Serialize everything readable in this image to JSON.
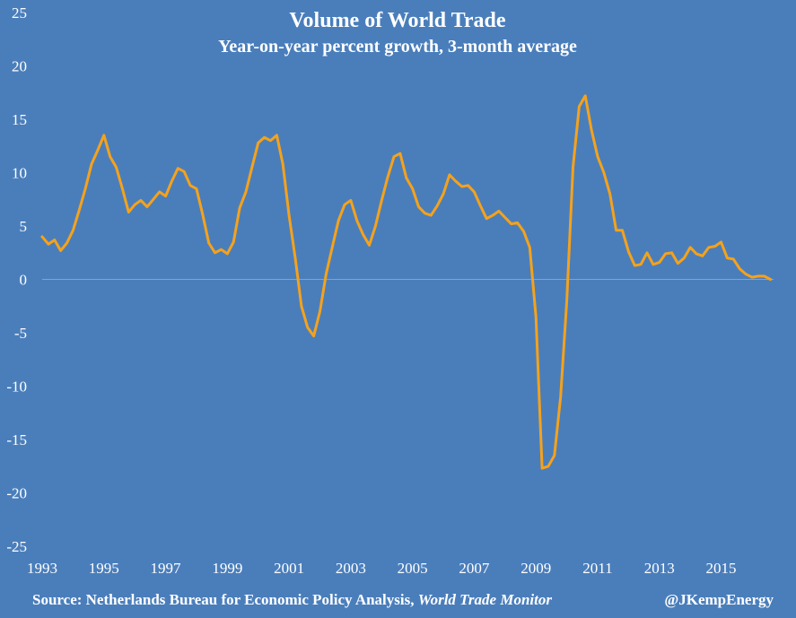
{
  "chart_data": {
    "type": "line",
    "title": "Volume of World Trade",
    "subtitle": "Year-on-year percent growth, 3-month average",
    "ylim": [
      -25,
      25
    ],
    "y_ticks": [
      25,
      20,
      15,
      10,
      5,
      0,
      -5,
      -10,
      -15,
      -20,
      -25
    ],
    "x_ticks": [
      "1993",
      "1995",
      "1997",
      "1999",
      "2001",
      "2003",
      "2005",
      "2007",
      "2009",
      "2011",
      "2013",
      "2015"
    ],
    "xlim": [
      1993.0,
      2016.7
    ],
    "line_color": "#f5a21b",
    "background_color": "#4a7ebb",
    "grid": false,
    "series": [
      {
        "x": [
          1993.0,
          1993.2,
          1993.4,
          1993.6,
          1993.8,
          1994.0,
          1994.2,
          1994.4,
          1994.6,
          1994.8,
          1995.0,
          1995.2,
          1995.4,
          1995.6,
          1995.8,
          1996.0,
          1996.2,
          1996.4,
          1996.6,
          1996.8,
          1997.0,
          1997.2,
          1997.4,
          1997.6,
          1997.8,
          1998.0,
          1998.2,
          1998.4,
          1998.6,
          1998.8,
          1999.0,
          1999.2,
          1999.4,
          1999.6,
          1999.8,
          2000.0,
          2000.2,
          2000.4,
          2000.6,
          2000.8,
          2001.0,
          2001.2,
          2001.4,
          2001.6,
          2001.8,
          2002.0,
          2002.2,
          2002.4,
          2002.6,
          2002.8,
          2003.0,
          2003.2,
          2003.4,
          2003.6,
          2003.8,
          2004.0,
          2004.2,
          2004.4,
          2004.6,
          2004.8,
          2005.0,
          2005.2,
          2005.4,
          2005.6,
          2005.8,
          2006.0,
          2006.2,
          2006.4,
          2006.6,
          2006.8,
          2007.0,
          2007.2,
          2007.4,
          2007.6,
          2007.8,
          2008.0,
          2008.2,
          2008.4,
          2008.6,
          2008.8,
          2009.0,
          2009.2,
          2009.4,
          2009.6,
          2009.8,
          2010.0,
          2010.2,
          2010.4,
          2010.6,
          2010.8,
          2011.0,
          2011.2,
          2011.4,
          2011.6,
          2011.8,
          2012.0,
          2012.2,
          2012.4,
          2012.6,
          2012.8,
          2013.0,
          2013.2,
          2013.4,
          2013.6,
          2013.8,
          2014.0,
          2014.2,
          2014.4,
          2014.6,
          2014.8,
          2015.0,
          2015.2,
          2015.4,
          2015.6,
          2015.8,
          2016.0,
          2016.2,
          2016.4,
          2016.6
        ],
        "y": [
          4.0,
          3.3,
          3.7,
          2.7,
          3.4,
          4.6,
          6.5,
          8.5,
          10.8,
          12.1,
          13.5,
          11.5,
          10.5,
          8.5,
          6.3,
          7.0,
          7.4,
          6.8,
          7.5,
          8.2,
          7.8,
          9.2,
          10.4,
          10.1,
          8.8,
          8.5,
          6.1,
          3.4,
          2.5,
          2.8,
          2.4,
          3.5,
          6.7,
          8.2,
          10.5,
          12.8,
          13.3,
          13.0,
          13.5,
          10.8,
          6.0,
          2.0,
          -2.5,
          -4.5,
          -5.3,
          -3.0,
          0.5,
          3.0,
          5.5,
          7.0,
          7.4,
          5.5,
          4.2,
          3.2,
          5.0,
          7.4,
          9.6,
          11.5,
          11.8,
          9.5,
          8.5,
          6.8,
          6.2,
          6.0,
          6.9,
          8.0,
          9.8,
          9.2,
          8.7,
          8.8,
          8.2,
          6.9,
          5.7,
          6.0,
          6.4,
          5.8,
          5.2,
          5.3,
          4.5,
          3.0,
          -3.5,
          -17.7,
          -17.5,
          -16.5,
          -11.0,
          -2.0,
          10.5,
          16.2,
          17.2,
          14.0,
          11.5,
          10.0,
          8.0,
          4.6,
          4.6,
          2.6,
          1.3,
          1.4,
          2.5,
          1.4,
          1.6,
          2.4,
          2.5,
          1.5,
          2.0,
          3.0,
          2.4,
          2.2,
          3.0,
          3.1,
          3.5,
          2.0,
          1.9,
          1.0,
          0.5,
          0.2,
          0.3,
          0.3,
          0.0
        ]
      }
    ]
  },
  "footer": {
    "source_prefix": "Source:  Netherlands Bureau for Economic Policy Analysis, ",
    "source_italic": "World Trade Monitor",
    "credit": "@JKempEnergy"
  }
}
